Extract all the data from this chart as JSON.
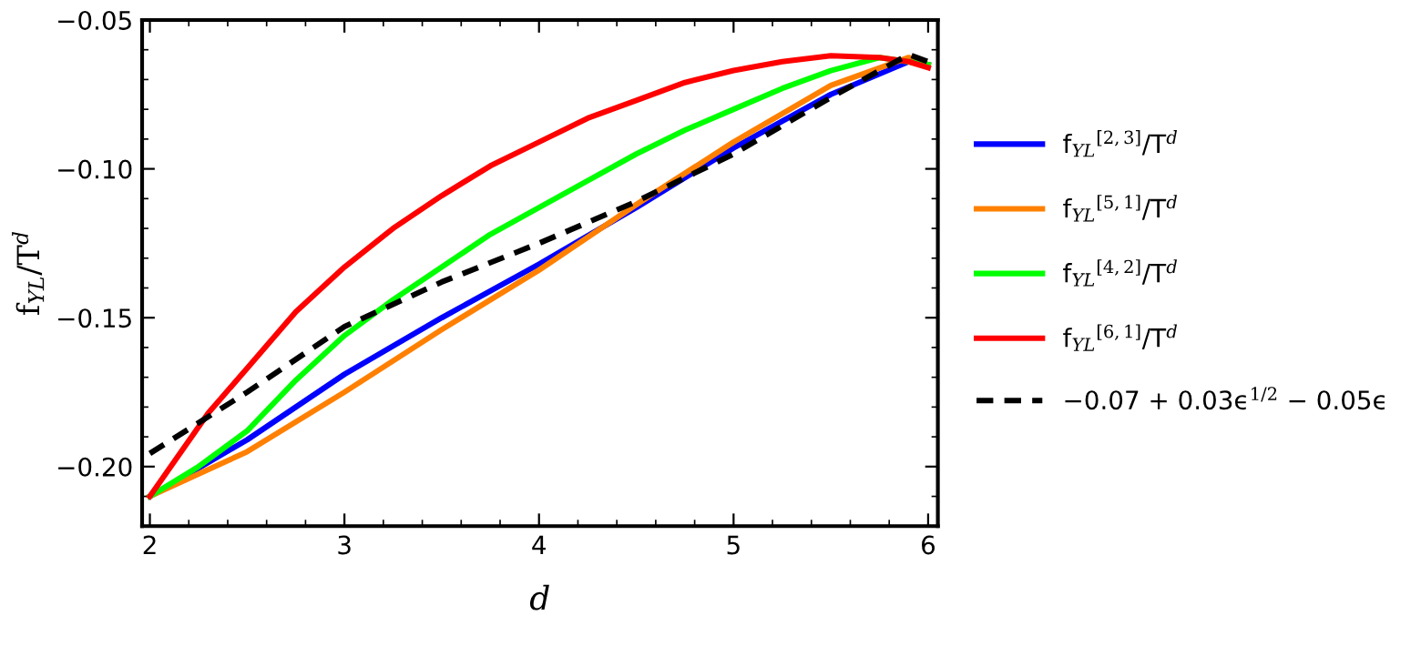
{
  "chart_data": {
    "type": "line",
    "xlabel": "d",
    "ylabel": "f$_{YL}$/T$^{d}$",
    "xlim": [
      1.96,
      6.05
    ],
    "ylim": [
      -0.22,
      -0.05
    ],
    "xticks": [
      2,
      3,
      4,
      5,
      6
    ],
    "yticks": [
      {
        "value": -0.05,
        "label": "−0.05"
      },
      {
        "value": -0.1,
        "label": "−0.10"
      },
      {
        "value": -0.15,
        "label": "−0.15"
      },
      {
        "value": -0.2,
        "label": "−0.20"
      }
    ],
    "grid": false,
    "legend": "right",
    "marker": "none",
    "series": [
      {
        "name": "f$_{YL}$$^{[2,3]}$/T$^{d}$",
        "color": "#0000ff",
        "x": [
          2,
          2.5,
          3,
          3.5,
          4,
          4.5,
          5,
          5.5,
          5.9,
          6
        ],
        "values": [
          -0.21,
          -0.191,
          -0.169,
          -0.15,
          -0.132,
          -0.113,
          -0.093,
          -0.075,
          -0.064,
          -0.065
        ]
      },
      {
        "name": "f$_{YL}$$^{[5,1]}$/T$^{d}$",
        "color": "#ff8000",
        "x": [
          2,
          2.5,
          3,
          3.5,
          4,
          4.5,
          5,
          5.5,
          5.9,
          6
        ],
        "values": [
          -0.21,
          -0.195,
          -0.175,
          -0.154,
          -0.134,
          -0.112,
          -0.091,
          -0.072,
          -0.0626,
          -0.065
        ]
      },
      {
        "name": "f$_{YL}$$^{[4,2]}$/T$^{d}$",
        "color": "#00ff00",
        "x": [
          2,
          2.25,
          2.5,
          2.75,
          3,
          3.25,
          3.5,
          3.75,
          4,
          4.25,
          4.5,
          4.75,
          5,
          5.25,
          5.5,
          5.75,
          6
        ],
        "values": [
          -0.21,
          -0.2,
          -0.188,
          -0.171,
          -0.156,
          -0.144,
          -0.133,
          -0.122,
          -0.113,
          -0.104,
          -0.095,
          -0.087,
          -0.08,
          -0.073,
          -0.067,
          -0.0626,
          -0.065
        ]
      },
      {
        "name": "f$_{YL}$$^{[6,1]}$/T$^{d}$",
        "color": "#ff0000",
        "x": [
          2,
          2.15,
          2.3,
          2.5,
          2.75,
          3,
          3.25,
          3.5,
          3.75,
          4,
          4.25,
          4.5,
          4.75,
          5,
          5.25,
          5.5,
          5.75,
          5.9,
          6
        ],
        "values": [
          -0.21,
          -0.196,
          -0.182,
          -0.167,
          -0.148,
          -0.133,
          -0.12,
          -0.109,
          -0.099,
          -0.091,
          -0.083,
          -0.077,
          -0.071,
          -0.067,
          -0.064,
          -0.062,
          -0.0626,
          -0.064,
          -0.066
        ]
      },
      {
        "name": "−0.07 + 0.03ϵ$^{1/2}$ − 0.05ϵ",
        "color": "#000000",
        "line_style": "dashed",
        "x": [
          2,
          2.5,
          3,
          3.5,
          4,
          4.5,
          5,
          5.5,
          5.9,
          6
        ],
        "values": [
          -0.1956,
          -0.175,
          -0.153,
          -0.138,
          -0.125,
          -0.111,
          -0.095,
          -0.076,
          -0.0616,
          -0.064
        ]
      }
    ]
  }
}
